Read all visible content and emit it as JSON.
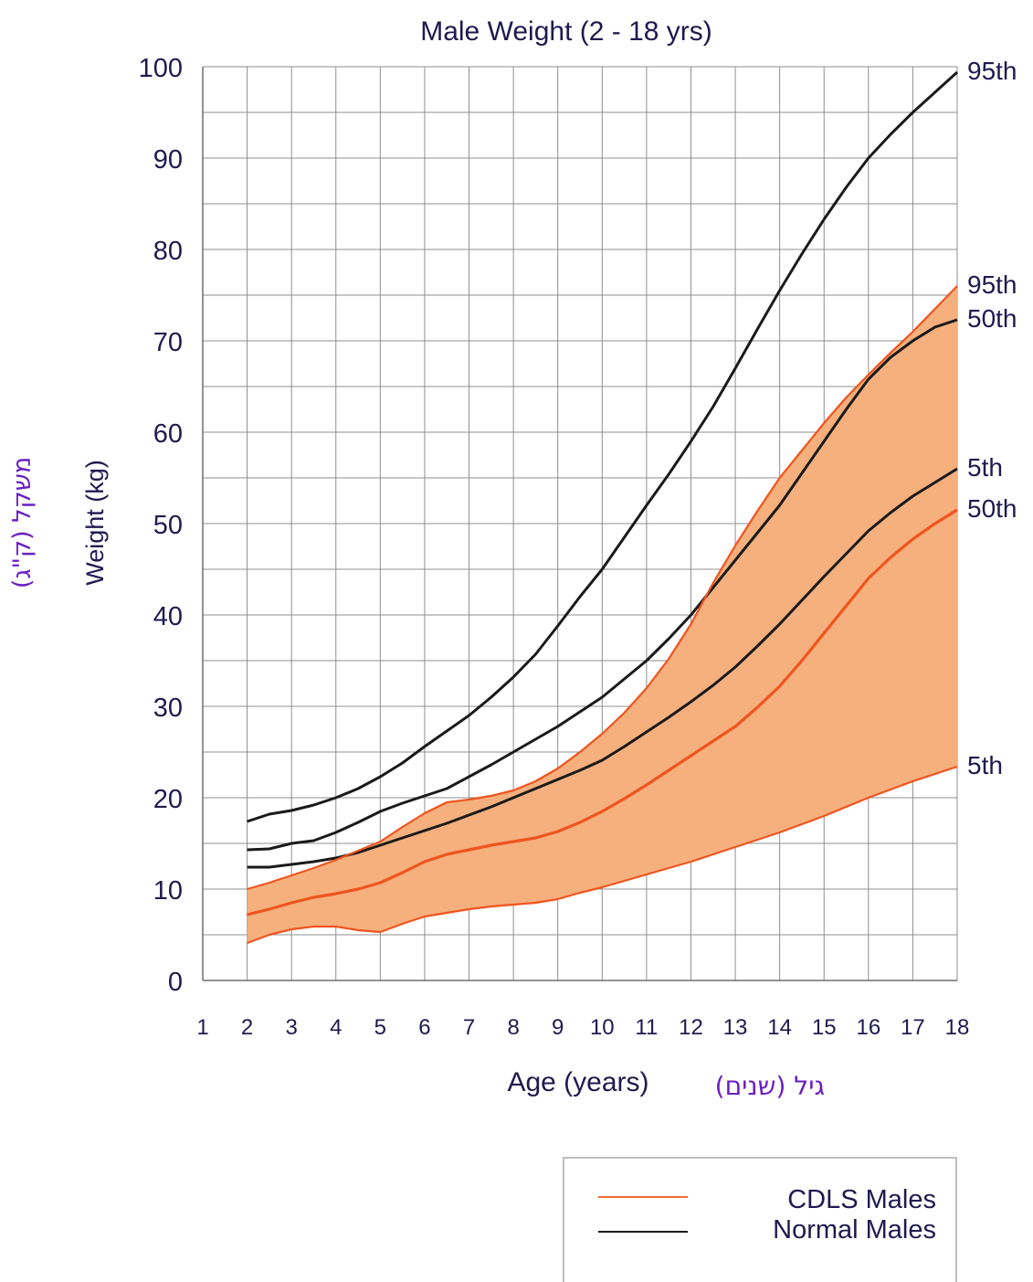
{
  "chart_data": {
    "type": "line",
    "title": "Male Weight (2 - 18 yrs)",
    "xlabel": "Age (years)",
    "xlabel_hebrew": "גיל (שנים)",
    "ylabel": "Weight (kg)",
    "ylabel_hebrew": "משקל (ק\"ג)",
    "xlim": [
      1,
      18
    ],
    "ylim": [
      0,
      100
    ],
    "x_ticks": [
      "1",
      "2",
      "3",
      "4",
      "5",
      "6",
      "7",
      "8",
      "9",
      "10",
      "11",
      "12",
      "13",
      "14",
      "15",
      "16",
      "17",
      "18"
    ],
    "y_ticks": [
      "0",
      "10",
      "20",
      "30",
      "40",
      "50",
      "60",
      "70",
      "80",
      "90",
      "100"
    ],
    "grid": true,
    "legend_position": "bottom-right",
    "legend": [
      {
        "label": "CDLS Males",
        "color": "#f26b3a"
      },
      {
        "label": "Normal Males",
        "color": "#1a1a1a"
      }
    ],
    "colors": {
      "band_fill": "#f5b07e",
      "cdls_line": "#f0541e",
      "normal_line": "#1a1a1a",
      "text": "#1f1a4f",
      "hebrew_text": "#6a1fc2"
    },
    "series": [
      {
        "group": "normal",
        "end_label": "95th",
        "points": [
          [
            2,
            17.4
          ],
          [
            2.5,
            18.2
          ],
          [
            3,
            18.6
          ],
          [
            3.5,
            19.2
          ],
          [
            4,
            20
          ],
          [
            4.5,
            21
          ],
          [
            5,
            22.3
          ],
          [
            5.5,
            23.8
          ],
          [
            6,
            25.6
          ],
          [
            6.5,
            27.3
          ],
          [
            7,
            29
          ],
          [
            7.5,
            31
          ],
          [
            8,
            33.2
          ],
          [
            8.5,
            35.7
          ],
          [
            9,
            38.8
          ],
          [
            9.5,
            42
          ],
          [
            10,
            45
          ],
          [
            10.5,
            48.5
          ],
          [
            11,
            52
          ],
          [
            11.5,
            55.4
          ],
          [
            12,
            59
          ],
          [
            12.5,
            62.8
          ],
          [
            13,
            67
          ],
          [
            13.5,
            71.3
          ],
          [
            14,
            75.5
          ],
          [
            14.5,
            79.5
          ],
          [
            15,
            83.3
          ],
          [
            15.5,
            86.8
          ],
          [
            16,
            90
          ],
          [
            16.5,
            92.6
          ],
          [
            17,
            95
          ],
          [
            17.5,
            97.2
          ],
          [
            18,
            99.4
          ]
        ]
      },
      {
        "group": "normal",
        "end_label": "50th",
        "points": [
          [
            2,
            14.3
          ],
          [
            2.5,
            14.4
          ],
          [
            3,
            15
          ],
          [
            3.5,
            15.3
          ],
          [
            4,
            16.2
          ],
          [
            4.5,
            17.3
          ],
          [
            5,
            18.5
          ],
          [
            5.5,
            19.4
          ],
          [
            6,
            20.2
          ],
          [
            6.5,
            21
          ],
          [
            7,
            22.3
          ],
          [
            7.5,
            23.6
          ],
          [
            8,
            25
          ],
          [
            8.5,
            26.4
          ],
          [
            9,
            27.8
          ],
          [
            9.5,
            29.4
          ],
          [
            10,
            31
          ],
          [
            10.5,
            33
          ],
          [
            11,
            35
          ],
          [
            11.5,
            37.4
          ],
          [
            12,
            40
          ],
          [
            12.5,
            43
          ],
          [
            13,
            46
          ],
          [
            13.5,
            49
          ],
          [
            14,
            52
          ],
          [
            14.5,
            55.5
          ],
          [
            15,
            59
          ],
          [
            15.5,
            62.5
          ],
          [
            16,
            65.8
          ],
          [
            16.5,
            68.2
          ],
          [
            17,
            70
          ],
          [
            17.5,
            71.5
          ],
          [
            18,
            72.3
          ]
        ]
      },
      {
        "group": "normal",
        "end_label": "5th",
        "points": [
          [
            2,
            12.4
          ],
          [
            2.5,
            12.4
          ],
          [
            3,
            12.7
          ],
          [
            3.5,
            13
          ],
          [
            4,
            13.4
          ],
          [
            4.5,
            14
          ],
          [
            5,
            14.8
          ],
          [
            5.5,
            15.6
          ],
          [
            6,
            16.4
          ],
          [
            6.5,
            17.2
          ],
          [
            7,
            18.1
          ],
          [
            7.5,
            19
          ],
          [
            8,
            20
          ],
          [
            8.5,
            21
          ],
          [
            9,
            22
          ],
          [
            9.5,
            23
          ],
          [
            10,
            24.1
          ],
          [
            10.5,
            25.6
          ],
          [
            11,
            27.2
          ],
          [
            11.5,
            28.8
          ],
          [
            12,
            30.5
          ],
          [
            12.5,
            32.3
          ],
          [
            13,
            34.3
          ],
          [
            13.5,
            36.6
          ],
          [
            14,
            39
          ],
          [
            14.5,
            41.6
          ],
          [
            15,
            44.2
          ],
          [
            15.5,
            46.7
          ],
          [
            16,
            49.2
          ],
          [
            16.5,
            51.2
          ],
          [
            17,
            53
          ],
          [
            17.5,
            54.5
          ],
          [
            18,
            56
          ]
        ]
      },
      {
        "group": "cdls",
        "end_label": "95th",
        "points": [
          [
            2,
            10
          ],
          [
            2.5,
            10.7
          ],
          [
            3,
            11.5
          ],
          [
            3.5,
            12.3
          ],
          [
            4,
            13.2
          ],
          [
            4.5,
            14.2
          ],
          [
            5,
            15.2
          ],
          [
            5.5,
            16.8
          ],
          [
            6,
            18.3
          ],
          [
            6.5,
            19.5
          ],
          [
            7,
            19.8
          ],
          [
            7.5,
            20.2
          ],
          [
            8,
            20.8
          ],
          [
            8.5,
            21.8
          ],
          [
            9,
            23.2
          ],
          [
            9.5,
            25
          ],
          [
            10,
            27
          ],
          [
            10.5,
            29.3
          ],
          [
            11,
            32
          ],
          [
            11.5,
            35.2
          ],
          [
            12,
            39
          ],
          [
            12.5,
            43.5
          ],
          [
            13,
            47.6
          ],
          [
            13.5,
            51.4
          ],
          [
            14,
            55
          ],
          [
            14.5,
            58
          ],
          [
            15,
            61
          ],
          [
            15.5,
            63.8
          ],
          [
            16,
            66.3
          ],
          [
            16.5,
            68.7
          ],
          [
            17,
            71
          ],
          [
            17.5,
            73.5
          ],
          [
            18,
            76
          ]
        ]
      },
      {
        "group": "cdls",
        "end_label": "50th",
        "points": [
          [
            2,
            7.2
          ],
          [
            2.5,
            7.8
          ],
          [
            3,
            8.5
          ],
          [
            3.5,
            9.1
          ],
          [
            4,
            9.5
          ],
          [
            4.5,
            10
          ],
          [
            5,
            10.7
          ],
          [
            5.5,
            11.8
          ],
          [
            6,
            13
          ],
          [
            6.5,
            13.8
          ],
          [
            7,
            14.3
          ],
          [
            7.5,
            14.8
          ],
          [
            8,
            15.2
          ],
          [
            8.5,
            15.6
          ],
          [
            9,
            16.3
          ],
          [
            9.5,
            17.3
          ],
          [
            10,
            18.5
          ],
          [
            10.5,
            19.9
          ],
          [
            11,
            21.4
          ],
          [
            11.5,
            23
          ],
          [
            12,
            24.6
          ],
          [
            12.5,
            26.2
          ],
          [
            13,
            27.8
          ],
          [
            13.5,
            29.9
          ],
          [
            14,
            32.2
          ],
          [
            14.5,
            35
          ],
          [
            15,
            38
          ],
          [
            15.5,
            41
          ],
          [
            16,
            44
          ],
          [
            16.5,
            46.3
          ],
          [
            17,
            48.3
          ],
          [
            17.5,
            50
          ],
          [
            18,
            51.5
          ]
        ]
      },
      {
        "group": "cdls",
        "end_label": "5th",
        "points": [
          [
            2,
            4.1
          ],
          [
            2.5,
            5
          ],
          [
            3,
            5.6
          ],
          [
            3.5,
            5.9
          ],
          [
            4,
            5.9
          ],
          [
            4.5,
            5.5
          ],
          [
            5,
            5.3
          ],
          [
            5.5,
            6.2
          ],
          [
            6,
            7
          ],
          [
            6.5,
            7.4
          ],
          [
            7,
            7.8
          ],
          [
            7.5,
            8.1
          ],
          [
            8,
            8.3
          ],
          [
            8.5,
            8.5
          ],
          [
            9,
            8.9
          ],
          [
            9.5,
            9.6
          ],
          [
            10,
            10.2
          ],
          [
            10.5,
            10.9
          ],
          [
            11,
            11.6
          ],
          [
            11.5,
            12.3
          ],
          [
            12,
            13
          ],
          [
            12.5,
            13.8
          ],
          [
            13,
            14.6
          ],
          [
            13.5,
            15.4
          ],
          [
            14,
            16.2
          ],
          [
            14.5,
            17.1
          ],
          [
            15,
            18
          ],
          [
            15.5,
            19
          ],
          [
            16,
            20
          ],
          [
            16.5,
            20.9
          ],
          [
            17,
            21.8
          ],
          [
            17.5,
            22.6
          ],
          [
            18,
            23.4
          ]
        ]
      }
    ]
  }
}
